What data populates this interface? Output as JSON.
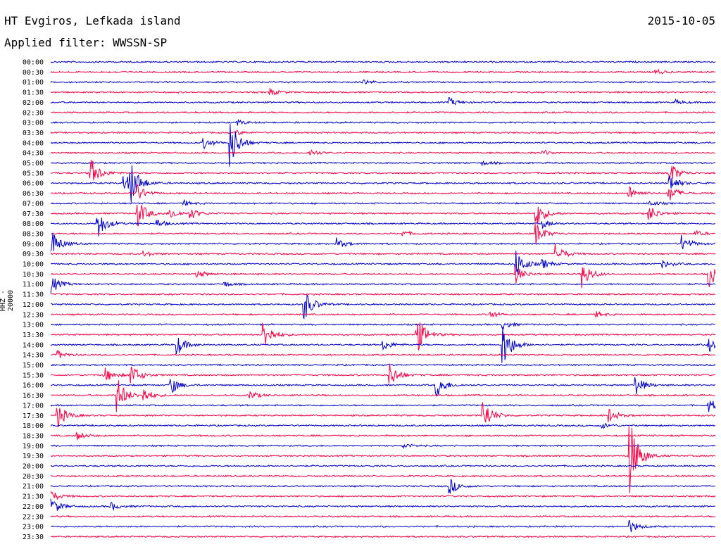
{
  "header": {
    "station": "HT Evgiros, Lefkada island",
    "date": "2015-10-05",
    "filter": "Applied filter: WWSSN-SP"
  },
  "chart_data": {
    "type": "line",
    "title": "HT Evgiros, Lefkada island",
    "ylabel": "HHZ - 20000",
    "colors": [
      "#0000cc",
      "#ff0044"
    ],
    "rows": [
      {
        "label": "00:00",
        "events": []
      },
      {
        "label": "00:30",
        "events": [
          {
            "t": 0.91,
            "a": 4
          }
        ]
      },
      {
        "label": "01:00",
        "events": [
          {
            "t": 0.47,
            "a": 4
          }
        ]
      },
      {
        "label": "01:30",
        "events": [
          {
            "t": 0.33,
            "a": 5
          }
        ]
      },
      {
        "label": "02:00",
        "events": [
          {
            "t": 0.6,
            "a": 6
          },
          {
            "t": 0.94,
            "a": 3
          }
        ]
      },
      {
        "label": "02:30",
        "events": []
      },
      {
        "label": "03:00",
        "events": [
          {
            "t": 0.28,
            "a": 4
          }
        ]
      },
      {
        "label": "03:30",
        "events": [
          {
            "t": 0.28,
            "a": 3
          }
        ]
      },
      {
        "label": "04:00",
        "events": [
          {
            "t": 0.23,
            "a": 8
          },
          {
            "t": 0.27,
            "a": 36
          }
        ]
      },
      {
        "label": "04:30",
        "events": [
          {
            "t": 0.39,
            "a": 5
          },
          {
            "t": 0.74,
            "a": 4
          }
        ]
      },
      {
        "label": "05:00",
        "events": [
          {
            "t": 0.65,
            "a": 3
          }
        ]
      },
      {
        "label": "05:30",
        "events": [
          {
            "t": 0.06,
            "a": 22
          },
          {
            "t": 0.93,
            "a": 18
          }
        ]
      },
      {
        "label": "06:00",
        "events": [
          {
            "t": 0.11,
            "a": 14
          },
          {
            "t": 0.12,
            "a": 28
          },
          {
            "t": 0.93,
            "a": 14
          }
        ]
      },
      {
        "label": "06:30",
        "events": [
          {
            "t": 0.13,
            "a": 12
          },
          {
            "t": 0.87,
            "a": 10
          },
          {
            "t": 0.93,
            "a": 12
          }
        ]
      },
      {
        "label": "07:00",
        "events": [
          {
            "t": 0.2,
            "a": 4
          },
          {
            "t": 0.9,
            "a": 4
          }
        ]
      },
      {
        "label": "07:30",
        "events": [
          {
            "t": 0.13,
            "a": 22
          },
          {
            "t": 0.18,
            "a": 8
          },
          {
            "t": 0.21,
            "a": 8
          },
          {
            "t": 0.73,
            "a": 20
          },
          {
            "t": 0.9,
            "a": 12
          }
        ]
      },
      {
        "label": "08:00",
        "events": [
          {
            "t": 0.07,
            "a": 22
          },
          {
            "t": 0.16,
            "a": 6
          },
          {
            "t": 0.74,
            "a": 6
          }
        ]
      },
      {
        "label": "08:30",
        "events": [
          {
            "t": 0.53,
            "a": 4
          },
          {
            "t": 0.73,
            "a": 16
          },
          {
            "t": 0.97,
            "a": 4
          }
        ]
      },
      {
        "label": "09:00",
        "events": [
          {
            "t": 0.0,
            "a": 22
          },
          {
            "t": 0.43,
            "a": 8
          },
          {
            "t": 0.95,
            "a": 12
          }
        ]
      },
      {
        "label": "09:30",
        "events": [
          {
            "t": 0.14,
            "a": 4
          },
          {
            "t": 0.76,
            "a": 14
          }
        ]
      },
      {
        "label": "10:00",
        "events": [
          {
            "t": 0.7,
            "a": 22
          },
          {
            "t": 0.74,
            "a": 6
          },
          {
            "t": 0.92,
            "a": 6
          }
        ]
      },
      {
        "label": "10:30",
        "events": [
          {
            "t": 0.22,
            "a": 6
          },
          {
            "t": 0.7,
            "a": 12
          },
          {
            "t": 0.8,
            "a": 20
          },
          {
            "t": 0.99,
            "a": 20
          }
        ]
      },
      {
        "label": "11:00",
        "events": [
          {
            "t": 0.0,
            "a": 14
          },
          {
            "t": 0.26,
            "a": 4
          }
        ]
      },
      {
        "label": "11:30",
        "events": []
      },
      {
        "label": "12:00",
        "events": [
          {
            "t": 0.38,
            "a": 26
          }
        ]
      },
      {
        "label": "12:30",
        "events": [
          {
            "t": 0.66,
            "a": 6
          },
          {
            "t": 0.82,
            "a": 4
          }
        ]
      },
      {
        "label": "13:00",
        "events": [
          {
            "t": 0.68,
            "a": 6
          }
        ]
      },
      {
        "label": "13:30",
        "events": [
          {
            "t": 0.32,
            "a": 22
          },
          {
            "t": 0.55,
            "a": 30
          }
        ]
      },
      {
        "label": "14:00",
        "events": [
          {
            "t": 0.19,
            "a": 14
          },
          {
            "t": 0.5,
            "a": 8
          },
          {
            "t": 0.68,
            "a": 34
          },
          {
            "t": 0.99,
            "a": 10
          }
        ]
      },
      {
        "label": "14:30",
        "events": [
          {
            "t": 0.01,
            "a": 6
          }
        ]
      },
      {
        "label": "15:00",
        "events": []
      },
      {
        "label": "15:30",
        "events": [
          {
            "t": 0.08,
            "a": 12
          },
          {
            "t": 0.12,
            "a": 18
          },
          {
            "t": 0.51,
            "a": 18
          }
        ]
      },
      {
        "label": "16:00",
        "events": [
          {
            "t": 0.18,
            "a": 14
          },
          {
            "t": 0.58,
            "a": 18
          },
          {
            "t": 0.88,
            "a": 14
          }
        ]
      },
      {
        "label": "16:30",
        "events": [
          {
            "t": 0.1,
            "a": 26
          },
          {
            "t": 0.14,
            "a": 10
          },
          {
            "t": 0.3,
            "a": 6
          }
        ]
      },
      {
        "label": "17:00",
        "events": [
          {
            "t": 0.99,
            "a": 10
          }
        ]
      },
      {
        "label": "17:30",
        "events": [
          {
            "t": 0.01,
            "a": 18
          },
          {
            "t": 0.65,
            "a": 26
          },
          {
            "t": 0.84,
            "a": 10
          }
        ]
      },
      {
        "label": "18:00",
        "events": [
          {
            "t": 0.83,
            "a": 4
          }
        ]
      },
      {
        "label": "18:30",
        "events": [
          {
            "t": 0.04,
            "a": 6
          }
        ]
      },
      {
        "label": "19:00",
        "events": [
          {
            "t": 0.53,
            "a": 4
          }
        ]
      },
      {
        "label": "19:30",
        "events": [
          {
            "t": 0.87,
            "a": 60
          }
        ]
      },
      {
        "label": "20:00",
        "events": []
      },
      {
        "label": "20:30",
        "events": []
      },
      {
        "label": "21:00",
        "events": [
          {
            "t": 0.6,
            "a": 12
          }
        ]
      },
      {
        "label": "21:30",
        "events": [
          {
            "t": 0.0,
            "a": 8
          }
        ]
      },
      {
        "label": "22:00",
        "events": [
          {
            "t": 0.0,
            "a": 14
          },
          {
            "t": 0.09,
            "a": 6
          }
        ]
      },
      {
        "label": "22:30",
        "events": []
      },
      {
        "label": "23:00",
        "events": [
          {
            "t": 0.87,
            "a": 10
          }
        ]
      },
      {
        "label": "23:30",
        "events": []
      }
    ]
  }
}
